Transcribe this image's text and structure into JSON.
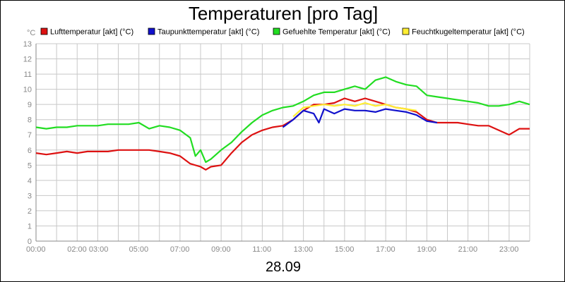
{
  "chart_data": {
    "type": "line",
    "title": "Temperaturen [pro Tag]",
    "date": "28.09",
    "unit": "°C",
    "ylim": [
      0,
      13
    ],
    "yticks": [
      "0",
      "1",
      "2",
      "3",
      "4",
      "5",
      "6",
      "7",
      "8",
      "9",
      "10",
      "11",
      "12",
      "13"
    ],
    "xlim": [
      "00:00",
      "24:00"
    ],
    "xtick_labels": [
      "00:00",
      "02:00 03:00",
      "05:00",
      "07:00",
      "09:00",
      "11:00",
      "13:00",
      "15:00",
      "17:00",
      "19:00",
      "21:00",
      "23:00"
    ],
    "grid": true,
    "legend_position": "top",
    "series": [
      {
        "name": "Lufttemperatur [akt] (°C)",
        "color": "#dd1111",
        "x": [
          "00:00",
          "00:30",
          "01:00",
          "01:30",
          "02:00",
          "02:30",
          "03:00",
          "03:30",
          "04:00",
          "04:30",
          "05:00",
          "05:30",
          "06:00",
          "06:30",
          "07:00",
          "07:30",
          "08:00",
          "08:15",
          "08:30",
          "09:00",
          "09:30",
          "10:00",
          "10:30",
          "11:00",
          "11:30",
          "12:00",
          "12:30",
          "13:00",
          "13:30",
          "14:00",
          "14:30",
          "15:00",
          "15:30",
          "16:00",
          "16:30",
          "17:00",
          "17:30",
          "18:00",
          "18:30",
          "19:00",
          "19:30",
          "20:00",
          "20:30",
          "21:00",
          "21:30",
          "22:00",
          "22:30",
          "23:00",
          "23:30",
          "24:00"
        ],
        "values": [
          5.8,
          5.7,
          5.8,
          5.9,
          5.8,
          5.9,
          5.9,
          5.9,
          6.0,
          6.0,
          6.0,
          6.0,
          5.9,
          5.8,
          5.6,
          5.1,
          4.9,
          4.7,
          4.9,
          5.0,
          5.8,
          6.5,
          7.0,
          7.3,
          7.5,
          7.6,
          8.0,
          8.6,
          9.0,
          9.0,
          9.1,
          9.4,
          9.2,
          9.4,
          9.2,
          9.0,
          8.8,
          8.7,
          8.5,
          8.0,
          7.8,
          7.8,
          7.8,
          7.7,
          7.6,
          7.6,
          7.3,
          7.0,
          7.4,
          7.4
        ]
      },
      {
        "name": "Taupunkttemperatur [akt] (°C)",
        "color": "#1111cc",
        "x": [
          "12:00",
          "12:30",
          "13:00",
          "13:30",
          "13:45",
          "14:00",
          "14:30",
          "15:00",
          "15:30",
          "16:00",
          "16:30",
          "17:00",
          "17:30",
          "18:00",
          "18:30",
          "19:00",
          "19:30"
        ],
        "values": [
          7.5,
          8.0,
          8.6,
          8.4,
          7.8,
          8.7,
          8.4,
          8.7,
          8.6,
          8.6,
          8.5,
          8.7,
          8.6,
          8.5,
          8.3,
          7.9,
          7.8
        ]
      },
      {
        "name": "Gefuehlte Temperatur [akt] (°C)",
        "color": "#22dd22",
        "x": [
          "00:00",
          "00:30",
          "01:00",
          "01:30",
          "02:00",
          "02:30",
          "03:00",
          "03:30",
          "04:00",
          "04:30",
          "05:00",
          "05:30",
          "06:00",
          "06:30",
          "07:00",
          "07:30",
          "07:45",
          "08:00",
          "08:15",
          "08:30",
          "09:00",
          "09:30",
          "10:00",
          "10:30",
          "11:00",
          "11:30",
          "12:00",
          "12:30",
          "13:00",
          "13:30",
          "14:00",
          "14:30",
          "15:00",
          "15:30",
          "16:00",
          "16:30",
          "17:00",
          "17:30",
          "18:00",
          "18:30",
          "19:00",
          "19:30",
          "20:00",
          "20:30",
          "21:00",
          "21:30",
          "22:00",
          "22:30",
          "23:00",
          "23:30",
          "24:00"
        ],
        "values": [
          7.5,
          7.4,
          7.5,
          7.5,
          7.6,
          7.6,
          7.6,
          7.7,
          7.7,
          7.7,
          7.8,
          7.4,
          7.6,
          7.5,
          7.3,
          6.8,
          5.6,
          6.0,
          5.2,
          5.4,
          6.0,
          6.5,
          7.2,
          7.8,
          8.3,
          8.6,
          8.8,
          8.9,
          9.2,
          9.6,
          9.8,
          9.8,
          10.0,
          10.2,
          10.0,
          10.6,
          10.8,
          10.5,
          10.3,
          10.2,
          9.6,
          9.5,
          9.4,
          9.3,
          9.2,
          9.1,
          8.9,
          8.9,
          9.0,
          9.2,
          9.0
        ]
      },
      {
        "name": "Feuchtkugeltemperatur [akt] (°C)",
        "color": "#ffee33",
        "x": [
          "12:30",
          "13:00",
          "13:30",
          "14:00",
          "14:30",
          "15:00",
          "15:30",
          "16:00",
          "16:30",
          "17:00",
          "17:30",
          "18:00",
          "18:30"
        ],
        "values": [
          8.2,
          8.8,
          8.9,
          9.0,
          8.9,
          9.0,
          8.9,
          9.1,
          8.9,
          9.0,
          8.8,
          8.7,
          8.6
        ]
      }
    ]
  }
}
